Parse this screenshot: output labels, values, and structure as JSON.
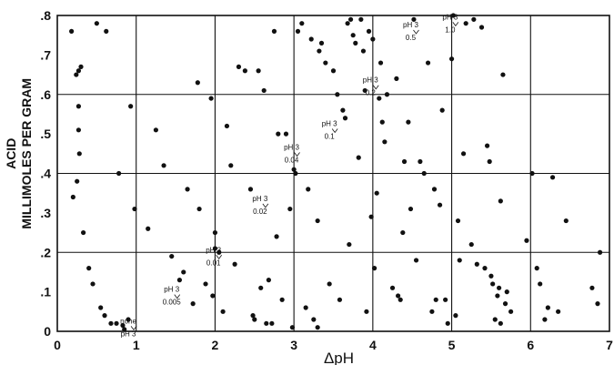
{
  "chart_data": {
    "type": "scatter",
    "title": "",
    "xlabel": "ΔpH",
    "ylabel_line1": "ACID",
    "ylabel_line2": "MILLIMOLES PER GRAM",
    "xlim": [
      0,
      7
    ],
    "ylim": [
      0,
      0.8
    ],
    "grid": true,
    "x_ticks": [
      0,
      1,
      2,
      3,
      4,
      5,
      6,
      7
    ],
    "x_tick_labels": [
      "0",
      "1",
      "2",
      "3",
      "4",
      "5",
      "6",
      "7"
    ],
    "y_ticks": [
      0,
      0.1,
      0.2,
      0.3,
      0.4,
      0.5,
      0.6,
      0.7,
      0.8
    ],
    "y_tick_labels": [
      "0",
      ".1",
      ".2",
      ".3",
      ".4",
      ".5",
      ".6",
      ".7",
      ".8"
    ],
    "gridlines_x": [
      1,
      2,
      3,
      4,
      5,
      6
    ],
    "gridlines_y": [
      0.2,
      0.4,
      0.6
    ],
    "annotations": [
      {
        "lines": [
          "none",
          "pH 3"
        ],
        "x": 0.9,
        "y": 0.02
      },
      {
        "lines": [
          "pH 3",
          "0.005"
        ],
        "x": 1.45,
        "y": 0.1
      },
      {
        "lines": [
          "pH 3",
          "0.01"
        ],
        "x": 1.98,
        "y": 0.2
      },
      {
        "lines": [
          "pH 3",
          "0.02"
        ],
        "x": 2.57,
        "y": 0.33
      },
      {
        "lines": [
          "pH 3",
          "0.04"
        ],
        "x": 2.97,
        "y": 0.46
      },
      {
        "lines": [
          "pH 3",
          "0.1"
        ],
        "x": 3.45,
        "y": 0.52
      },
      {
        "lines": [
          "pH 3",
          "0.2"
        ],
        "x": 3.97,
        "y": 0.63
      },
      {
        "lines": [
          "pH 3",
          "0.5"
        ],
        "x": 4.48,
        "y": 0.77
      },
      {
        "lines": [
          "pH 3",
          "1.0"
        ],
        "x": 4.98,
        "y": 0.79
      }
    ],
    "points": [
      [
        0.18,
        0.76
      ],
      [
        0.2,
        0.34
      ],
      [
        0.24,
        0.65
      ],
      [
        0.25,
        0.38
      ],
      [
        0.27,
        0.66
      ],
      [
        0.27,
        0.57
      ],
      [
        0.27,
        0.51
      ],
      [
        0.28,
        0.45
      ],
      [
        0.3,
        0.67
      ],
      [
        0.33,
        0.25
      ],
      [
        0.4,
        0.16
      ],
      [
        0.45,
        0.12
      ],
      [
        0.5,
        0.78
      ],
      [
        0.55,
        0.06
      ],
      [
        0.6,
        0.04
      ],
      [
        0.62,
        0.76
      ],
      [
        0.68,
        0.02
      ],
      [
        0.75,
        0.02
      ],
      [
        0.78,
        0.4
      ],
      [
        0.83,
        0.015
      ],
      [
        0.85,
        0.005
      ],
      [
        0.9,
        0.03
      ],
      [
        0.93,
        0.57
      ],
      [
        0.98,
        0.31
      ],
      [
        1.15,
        0.26
      ],
      [
        1.25,
        0.51
      ],
      [
        1.35,
        0.42
      ],
      [
        1.45,
        0.19
      ],
      [
        1.55,
        0.13
      ],
      [
        1.6,
        0.15
      ],
      [
        1.65,
        0.36
      ],
      [
        1.72,
        0.07
      ],
      [
        1.78,
        0.63
      ],
      [
        1.8,
        0.31
      ],
      [
        1.88,
        0.12
      ],
      [
        1.95,
        0.59
      ],
      [
        1.97,
        0.09
      ],
      [
        2.0,
        0.25
      ],
      [
        2.0,
        0.21
      ],
      [
        2.05,
        0.2
      ],
      [
        2.1,
        0.05
      ],
      [
        2.15,
        0.52
      ],
      [
        2.2,
        0.42
      ],
      [
        2.25,
        0.17
      ],
      [
        2.3,
        0.67
      ],
      [
        2.38,
        0.66
      ],
      [
        2.45,
        0.36
      ],
      [
        2.48,
        0.04
      ],
      [
        2.5,
        0.03
      ],
      [
        2.55,
        0.66
      ],
      [
        2.58,
        0.11
      ],
      [
        2.62,
        0.61
      ],
      [
        2.65,
        0.02
      ],
      [
        2.68,
        0.13
      ],
      [
        2.72,
        0.02
      ],
      [
        2.75,
        0.76
      ],
      [
        2.78,
        0.24
      ],
      [
        2.8,
        0.5
      ],
      [
        2.85,
        0.08
      ],
      [
        2.9,
        0.5
      ],
      [
        2.95,
        0.31
      ],
      [
        2.98,
        0.01
      ],
      [
        3.0,
        0.41
      ],
      [
        3.02,
        0.4
      ],
      [
        3.05,
        0.76
      ],
      [
        3.1,
        0.78
      ],
      [
        3.15,
        0.06
      ],
      [
        3.18,
        0.36
      ],
      [
        3.22,
        0.74
      ],
      [
        3.25,
        0.03
      ],
      [
        3.3,
        0.28
      ],
      [
        3.3,
        0.01
      ],
      [
        3.32,
        0.71
      ],
      [
        3.35,
        0.73
      ],
      [
        3.4,
        0.68
      ],
      [
        3.45,
        0.12
      ],
      [
        3.5,
        0.66
      ],
      [
        3.55,
        0.6
      ],
      [
        3.58,
        0.08
      ],
      [
        3.62,
        0.56
      ],
      [
        3.65,
        0.54
      ],
      [
        3.68,
        0.78
      ],
      [
        3.7,
        0.22
      ],
      [
        3.72,
        0.79
      ],
      [
        3.75,
        0.75
      ],
      [
        3.78,
        0.73
      ],
      [
        3.82,
        0.44
      ],
      [
        3.85,
        0.79
      ],
      [
        3.88,
        0.71
      ],
      [
        3.9,
        0.61
      ],
      [
        3.92,
        0.05
      ],
      [
        3.95,
        0.76
      ],
      [
        3.98,
        0.29
      ],
      [
        4.0,
        0.74
      ],
      [
        4.02,
        0.16
      ],
      [
        4.05,
        0.35
      ],
      [
        4.08,
        0.59
      ],
      [
        4.1,
        0.68
      ],
      [
        4.12,
        0.53
      ],
      [
        4.15,
        0.48
      ],
      [
        4.18,
        0.6
      ],
      [
        4.25,
        0.11
      ],
      [
        4.3,
        0.64
      ],
      [
        4.32,
        0.09
      ],
      [
        4.35,
        0.08
      ],
      [
        4.38,
        0.25
      ],
      [
        4.4,
        0.43
      ],
      [
        4.45,
        0.53
      ],
      [
        4.48,
        0.31
      ],
      [
        4.52,
        0.79
      ],
      [
        4.55,
        0.18
      ],
      [
        4.6,
        0.43
      ],
      [
        4.65,
        0.4
      ],
      [
        4.7,
        0.68
      ],
      [
        4.75,
        0.05
      ],
      [
        4.78,
        0.36
      ],
      [
        4.8,
        0.08
      ],
      [
        4.85,
        0.32
      ],
      [
        4.88,
        0.56
      ],
      [
        4.92,
        0.08
      ],
      [
        4.95,
        0.02
      ],
      [
        5.0,
        0.69
      ],
      [
        5.02,
        0.8
      ],
      [
        5.05,
        0.04
      ],
      [
        5.08,
        0.28
      ],
      [
        5.1,
        0.18
      ],
      [
        5.15,
        0.45
      ],
      [
        5.18,
        0.78
      ],
      [
        5.25,
        0.22
      ],
      [
        5.28,
        0.79
      ],
      [
        5.32,
        0.17
      ],
      [
        5.38,
        0.77
      ],
      [
        5.42,
        0.16
      ],
      [
        5.45,
        0.47
      ],
      [
        5.48,
        0.43
      ],
      [
        5.5,
        0.14
      ],
      [
        5.52,
        0.12
      ],
      [
        5.55,
        0.03
      ],
      [
        5.58,
        0.09
      ],
      [
        5.6,
        0.11
      ],
      [
        5.62,
        0.02
      ],
      [
        5.62,
        0.33
      ],
      [
        5.65,
        0.65
      ],
      [
        5.68,
        0.07
      ],
      [
        5.7,
        0.1
      ],
      [
        5.75,
        0.05
      ],
      [
        5.95,
        0.23
      ],
      [
        6.02,
        0.4
      ],
      [
        6.08,
        0.16
      ],
      [
        6.12,
        0.12
      ],
      [
        6.18,
        0.03
      ],
      [
        6.22,
        0.06
      ],
      [
        6.28,
        0.39
      ],
      [
        6.35,
        0.05
      ],
      [
        6.45,
        0.28
      ],
      [
        6.78,
        0.11
      ],
      [
        6.85,
        0.07
      ],
      [
        6.88,
        0.2
      ]
    ]
  }
}
